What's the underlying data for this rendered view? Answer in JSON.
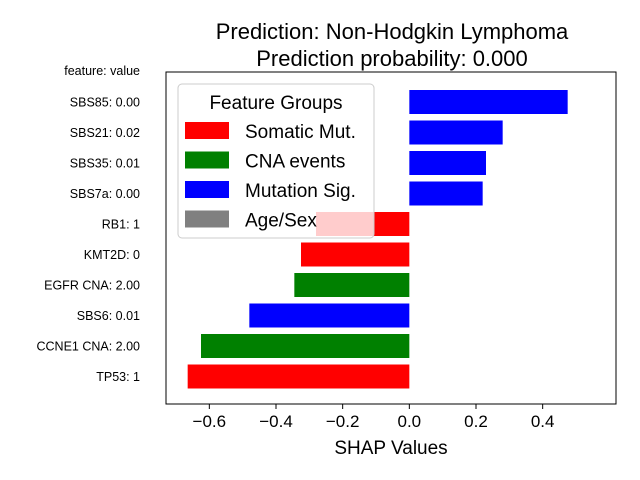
{
  "chart_data": {
    "type": "bar",
    "orientation": "horizontal",
    "title": [
      "Prediction: Non-Hodgkin Lymphoma",
      "Prediction probability: 0.000"
    ],
    "header_label": "feature: value",
    "xlabel": "SHAP Values",
    "xlim": [
      -0.73,
      0.62
    ],
    "xticks": [
      -0.6,
      -0.4,
      -0.2,
      0.0,
      0.2,
      0.4
    ],
    "xtick_labels": [
      "−0.6",
      "−0.4",
      "−0.2",
      "0.0",
      "0.2",
      "0.4"
    ],
    "grid": false,
    "legend": {
      "title": "Feature Groups",
      "placement": "upper-left",
      "entries": [
        {
          "label": "Somatic Mut.",
          "color": "#ff0000"
        },
        {
          "label": "CNA events",
          "color": "#008000"
        },
        {
          "label": "Mutation Sig.",
          "color": "#0000ff"
        },
        {
          "label": "Age/Sex",
          "color": "#808080"
        }
      ]
    },
    "bars": [
      {
        "label": "SBS85: 0.00",
        "value": 0.475,
        "group": "Mutation Sig.",
        "color": "#0000ff"
      },
      {
        "label": "SBS21: 0.02",
        "value": 0.28,
        "group": "Mutation Sig.",
        "color": "#0000ff"
      },
      {
        "label": "SBS35: 0.01",
        "value": 0.23,
        "group": "Mutation Sig.",
        "color": "#0000ff"
      },
      {
        "label": "SBS7a: 0.00",
        "value": 0.22,
        "group": "Mutation Sig.",
        "color": "#0000ff"
      },
      {
        "label": "RB1: 1",
        "value": -0.28,
        "group": "Somatic Mut.",
        "color": "#ff0000"
      },
      {
        "label": "KMT2D: 0",
        "value": -0.325,
        "group": "Somatic Mut.",
        "color": "#ff0000"
      },
      {
        "label": "EGFR CNA: 2.00",
        "value": -0.345,
        "group": "CNA events",
        "color": "#008000"
      },
      {
        "label": "SBS6: 0.01",
        "value": -0.48,
        "group": "Mutation Sig.",
        "color": "#0000ff"
      },
      {
        "label": "CCNE1 CNA: 2.00",
        "value": -0.625,
        "group": "CNA events",
        "color": "#008000"
      },
      {
        "label": "TP53: 1",
        "value": -0.665,
        "group": "Somatic Mut.",
        "color": "#ff0000"
      }
    ]
  }
}
